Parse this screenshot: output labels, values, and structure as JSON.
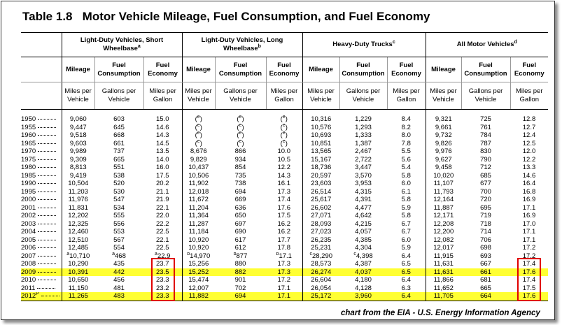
{
  "title": "Table 1.8   Motor Vehicle Mileage, Fuel Consumption, and Fuel Economy",
  "groups": [
    {
      "label": "Light-Duty Vehicles, Short Wheelbase",
      "sup": "a"
    },
    {
      "label": "Light-Duty Vehicles, Long Wheelbase",
      "sup": "b"
    },
    {
      "label": "Heavy-Duty Trucks",
      "sup": "c"
    },
    {
      "label": "All Motor Vehicles",
      "sup": "d"
    }
  ],
  "columns": [
    "Mileage",
    "Fuel Consumption",
    "Fuel Economy",
    "Mileage",
    "Fuel Consumption",
    "Fuel Economy",
    "Mileage",
    "Fuel Consumption",
    "Fuel Economy",
    "Mileage",
    "Fuel Consumption",
    "Fuel Economy"
  ],
  "units": [
    "Miles per Vehicle",
    "Gallons per Vehicle",
    "Miles per Gallon",
    "Miles per Vehicle",
    "Gallons per Vehicle",
    "Miles per Gallon",
    "Miles per Vehicle",
    "Gallons per Vehicle",
    "Miles per Gallon",
    "Miles per Vehicle",
    "Gallons per Vehicle",
    "Miles per Gallon"
  ],
  "rows": [
    {
      "year": "1950",
      "cells": [
        "9,060",
        "603",
        "15.0",
        {
          "open": "(",
          "sup": "e",
          "close": ")"
        },
        {
          "open": "(",
          "sup": "e",
          "close": ")"
        },
        {
          "open": "(",
          "sup": "e",
          "close": ")"
        },
        "10,316",
        "1,229",
        "8.4",
        "9,321",
        "725",
        "12.8"
      ]
    },
    {
      "year": "1955",
      "cells": [
        "9,447",
        "645",
        "14.6",
        {
          "open": "(",
          "sup": "e",
          "close": ")"
        },
        {
          "open": "(",
          "sup": "e",
          "close": ")"
        },
        {
          "open": "(",
          "sup": "e",
          "close": ")"
        },
        "10,576",
        "1,293",
        "8.2",
        "9,661",
        "761",
        "12.7"
      ]
    },
    {
      "year": "1960",
      "cells": [
        "9,518",
        "668",
        "14.3",
        {
          "open": "(",
          "sup": "e",
          "close": ")"
        },
        {
          "open": "(",
          "sup": "e",
          "close": ")"
        },
        {
          "open": "(",
          "sup": "e",
          "close": ")"
        },
        "10,693",
        "1,333",
        "8.0",
        "9,732",
        "784",
        "12.4"
      ]
    },
    {
      "year": "1965",
      "cells": [
        "9,603",
        "661",
        "14.5",
        {
          "open": "(",
          "sup": "e",
          "close": ")"
        },
        {
          "open": "(",
          "sup": "e",
          "close": ")"
        },
        {
          "open": "(",
          "sup": "e",
          "close": ")"
        },
        "10,851",
        "1,387",
        "7.8",
        "9,826",
        "787",
        "12.5"
      ]
    },
    {
      "year": "1970",
      "cells": [
        "9,989",
        "737",
        "13.5",
        "8,676",
        "866",
        "10.0",
        "13,565",
        "2,467",
        "5.5",
        "9,976",
        "830",
        "12.0"
      ]
    },
    {
      "year": "1975",
      "cells": [
        "9,309",
        "665",
        "14.0",
        "9,829",
        "934",
        "10.5",
        "15,167",
        "2,722",
        "5.6",
        "9,627",
        "790",
        "12.2"
      ]
    },
    {
      "year": "1980",
      "cells": [
        "8,813",
        "551",
        "16.0",
        "10,437",
        "854",
        "12.2",
        "18,736",
        "3,447",
        "5.4",
        "9,458",
        "712",
        "13.3"
      ]
    },
    {
      "year": "1985",
      "cells": [
        "9,419",
        "538",
        "17.5",
        "10,506",
        "735",
        "14.3",
        "20,597",
        "3,570",
        "5.8",
        "10,020",
        "685",
        "14.6"
      ]
    },
    {
      "year": "1990",
      "cells": [
        "10,504",
        "520",
        "20.2",
        "11,902",
        "738",
        "16.1",
        "23,603",
        "3,953",
        "6.0",
        "11,107",
        "677",
        "16.4"
      ]
    },
    {
      "year": "1995",
      "cells": [
        "11,203",
        "530",
        "21.1",
        "12,018",
        "694",
        "17.3",
        "26,514",
        "4,315",
        "6.1",
        "11,793",
        "700",
        "16.8"
      ]
    },
    {
      "year": "2000",
      "cells": [
        "11,976",
        "547",
        "21.9",
        "11,672",
        "669",
        "17.4",
        "25,617",
        "4,391",
        "5.8",
        "12,164",
        "720",
        "16.9"
      ]
    },
    {
      "year": "2001",
      "cells": [
        "11,831",
        "534",
        "22.1",
        "11,204",
        "636",
        "17.6",
        "26,602",
        "4,477",
        "5.9",
        "11,887",
        "695",
        "17.1"
      ]
    },
    {
      "year": "2002",
      "cells": [
        "12,202",
        "555",
        "22.0",
        "11,364",
        "650",
        "17.5",
        "27,071",
        "4,642",
        "5.8",
        "12,171",
        "719",
        "16.9"
      ]
    },
    {
      "year": "2003",
      "cells": [
        "12,325",
        "556",
        "22.2",
        "11,287",
        "697",
        "16.2",
        "28,093",
        "4,215",
        "6.7",
        "12,208",
        "718",
        "17.0"
      ]
    },
    {
      "year": "2004",
      "cells": [
        "12,460",
        "553",
        "22.5",
        "11,184",
        "690",
        "16.2",
        "27,023",
        "4,057",
        "6.7",
        "12,200",
        "714",
        "17.1"
      ]
    },
    {
      "year": "2005",
      "cells": [
        "12,510",
        "567",
        "22.1",
        "10,920",
        "617",
        "17.7",
        "26,235",
        "4,385",
        "6.0",
        "12,082",
        "706",
        "17.1"
      ]
    },
    {
      "year": "2006",
      "cells": [
        "12,485",
        "554",
        "22.5",
        "10,920",
        "612",
        "17.8",
        "25,231",
        "4,304",
        "5.9",
        "12,017",
        "698",
        "17.2"
      ]
    },
    {
      "year": "2007",
      "cells": [
        {
          "sup": "a",
          "text": "10,710"
        },
        {
          "sup": "a",
          "text": "468"
        },
        {
          "sup": "a",
          "text": "22.9"
        },
        {
          "sup": "b",
          "text": "14,970"
        },
        {
          "sup": "b",
          "text": "877"
        },
        {
          "sup": "b",
          "text": "17.1"
        },
        {
          "sup": "c",
          "text": "28,290"
        },
        {
          "sup": "c",
          "text": "4,398"
        },
        "6.4",
        "11,915",
        "693",
        "17.2"
      ]
    },
    {
      "year": "2008",
      "cells": [
        "10,290",
        "435",
        "23.7",
        "15,256",
        "880",
        "17.3",
        "28,573",
        "4,387",
        "6.5",
        "11,631",
        "667",
        "17.4"
      ]
    },
    {
      "year": "2009",
      "cells": [
        "10,391",
        "442",
        "23.5",
        "15,252",
        "882",
        "17.3",
        "26,274",
        "4,037",
        "6.5",
        "11,631",
        "661",
        "17.6"
      ]
    },
    {
      "year": "2010",
      "cells": [
        "10,650",
        "456",
        "23.3",
        "15,474",
        "901",
        "17.2",
        "26,604",
        "4,180",
        "6.4",
        "11,866",
        "681",
        "17.4"
      ]
    },
    {
      "year": "2011",
      "cells": [
        "11,150",
        "481",
        "23.2",
        "12,007",
        "702",
        "17.1",
        "26,054",
        "4,128",
        "6.3",
        "11,652",
        "665",
        "17.5"
      ]
    },
    {
      "year": "2012",
      "year_sup": "P",
      "cells": [
        "11,265",
        "483",
        "23.3",
        "11,882",
        "694",
        "17.1",
        "25,172",
        "3,960",
        "6.4",
        "11,705",
        "664",
        "17.6"
      ]
    }
  ],
  "source": "chart from the EIA - U.S. Energy Information Agency"
}
